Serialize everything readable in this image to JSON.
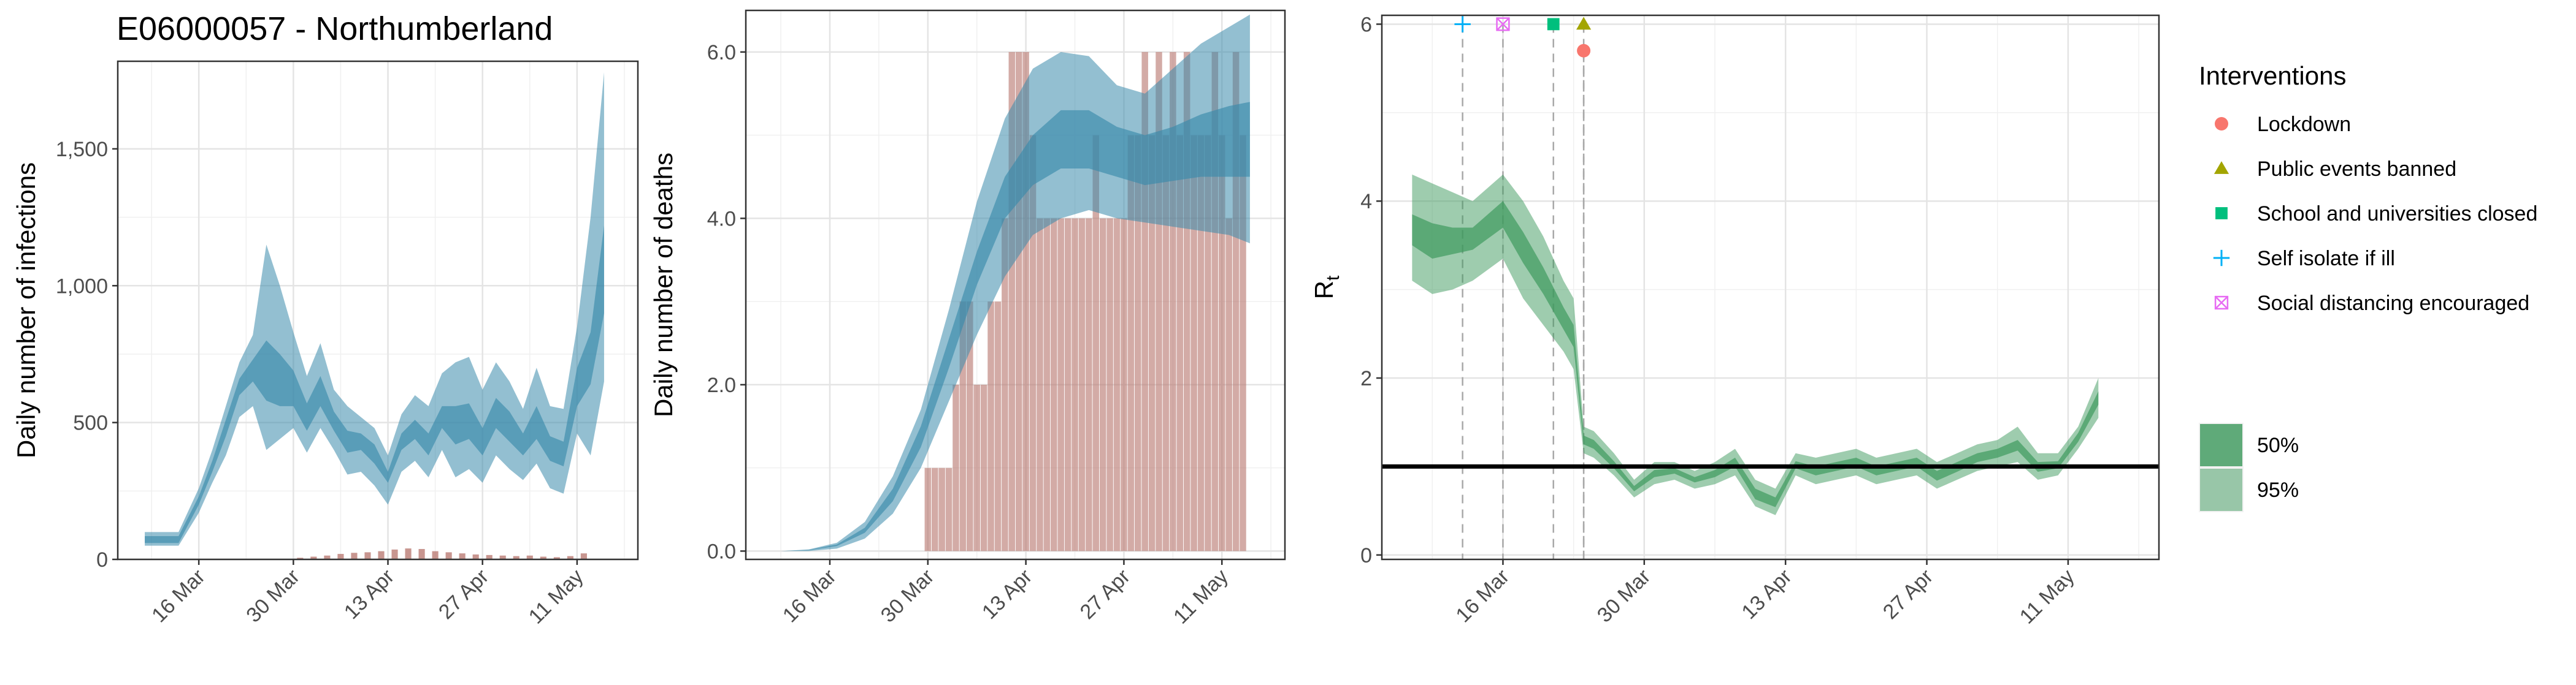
{
  "title": "E06000057 - Northumberland",
  "colors": {
    "infections_band": "#3a8bab",
    "deaths_band": "#3a8bab",
    "observed_bar": "#b5736b",
    "rt_band": "#3e9a5e",
    "lockdown": "#f8766d",
    "public_events_banned": "#a3a500",
    "schools_closed": "#00bf7d",
    "self_isolate": "#00b0f6",
    "social_distancing": "#e76bf3"
  },
  "chart_data": [
    {
      "id": "infections",
      "type": "area",
      "title": "E06000057 - Northumberland",
      "ylabel": "Daily number of infections",
      "xlabel": "",
      "xlim": [
        "2020-03-04",
        "2020-05-20"
      ],
      "ylim": [
        0,
        1820
      ],
      "yticks": [
        0,
        500,
        1000,
        1500
      ],
      "ytick_labels": [
        "0",
        "500",
        "1,000",
        "1,500"
      ],
      "xticks": [
        "2020-03-16",
        "2020-03-30",
        "2020-04-13",
        "2020-04-27",
        "2020-05-11"
      ],
      "xtick_labels": [
        "16 Mar",
        "30 Mar",
        "13 Apr",
        "27 Apr",
        "11 May"
      ],
      "grid": true,
      "series": [
        {
          "kind": "band",
          "level": "95%",
          "x": [
            "2020-03-08",
            "2020-03-13",
            "2020-03-16",
            "2020-03-18",
            "2020-03-20",
            "2020-03-22",
            "2020-03-24",
            "2020-03-26",
            "2020-03-28",
            "2020-03-30",
            "2020-04-01",
            "2020-04-03",
            "2020-04-05",
            "2020-04-07",
            "2020-04-09",
            "2020-04-11",
            "2020-04-13",
            "2020-04-15",
            "2020-04-17",
            "2020-04-19",
            "2020-04-21",
            "2020-04-23",
            "2020-04-25",
            "2020-04-27",
            "2020-04-29",
            "2020-05-01",
            "2020-05-03",
            "2020-05-05",
            "2020-05-07",
            "2020-05-09",
            "2020-05-11",
            "2020-05-13",
            "2020-05-15"
          ],
          "low": [
            50,
            50,
            170,
            280,
            380,
            520,
            560,
            400,
            440,
            480,
            390,
            480,
            400,
            310,
            320,
            270,
            200,
            320,
            360,
            300,
            400,
            300,
            330,
            280,
            380,
            330,
            290,
            350,
            260,
            240,
            460,
            380,
            650
          ],
          "high": [
            100,
            100,
            260,
            400,
            560,
            720,
            820,
            1150,
            1000,
            830,
            670,
            790,
            620,
            560,
            520,
            480,
            380,
            530,
            600,
            560,
            680,
            720,
            740,
            620,
            720,
            650,
            550,
            700,
            560,
            550,
            850,
            1250,
            1780
          ]
        },
        {
          "kind": "band",
          "level": "50%",
          "x": [
            "2020-03-08",
            "2020-03-13",
            "2020-03-16",
            "2020-03-18",
            "2020-03-20",
            "2020-03-22",
            "2020-03-24",
            "2020-03-26",
            "2020-03-28",
            "2020-03-30",
            "2020-04-01",
            "2020-04-03",
            "2020-04-05",
            "2020-04-07",
            "2020-04-09",
            "2020-04-11",
            "2020-04-13",
            "2020-04-15",
            "2020-04-17",
            "2020-04-19",
            "2020-04-21",
            "2020-04-23",
            "2020-04-25",
            "2020-04-27",
            "2020-04-29",
            "2020-05-01",
            "2020-05-03",
            "2020-05-05",
            "2020-05-07",
            "2020-05-09",
            "2020-05-11",
            "2020-05-13",
            "2020-05-15"
          ],
          "low": [
            60,
            60,
            200,
            320,
            450,
            600,
            650,
            580,
            560,
            560,
            470,
            560,
            470,
            390,
            400,
            350,
            280,
            400,
            440,
            380,
            480,
            420,
            440,
            380,
            480,
            430,
            380,
            440,
            360,
            340,
            560,
            640,
            900
          ],
          "high": [
            85,
            85,
            230,
            360,
            510,
            660,
            730,
            800,
            750,
            690,
            570,
            670,
            540,
            470,
            460,
            420,
            320,
            460,
            510,
            460,
            560,
            560,
            570,
            480,
            590,
            540,
            460,
            560,
            450,
            430,
            700,
            830,
            1220
          ]
        },
        {
          "kind": "bar",
          "name": "observed",
          "x": [
            "2020-03-31",
            "2020-04-02",
            "2020-04-04",
            "2020-04-06",
            "2020-04-08",
            "2020-04-10",
            "2020-04-12",
            "2020-04-14",
            "2020-04-16",
            "2020-04-18",
            "2020-04-20",
            "2020-04-22",
            "2020-04-24",
            "2020-04-26",
            "2020-04-28",
            "2020-04-30",
            "2020-05-02",
            "2020-05-04",
            "2020-05-06",
            "2020-05-08",
            "2020-05-10",
            "2020-05-12"
          ],
          "values": [
            6,
            10,
            14,
            20,
            24,
            26,
            30,
            36,
            40,
            38,
            30,
            26,
            22,
            18,
            16,
            14,
            12,
            14,
            10,
            8,
            12,
            22
          ]
        }
      ]
    },
    {
      "id": "deaths",
      "type": "area",
      "title": "",
      "ylabel": "Daily number of deaths",
      "xlabel": "",
      "xlim": [
        "2020-03-04",
        "2020-05-20"
      ],
      "ylim": [
        -0.1,
        6.5
      ],
      "yticks": [
        0.0,
        2.0,
        4.0,
        6.0
      ],
      "ytick_labels": [
        "0.0",
        "2.0",
        "4.0",
        "6.0"
      ],
      "xticks": [
        "2020-03-16",
        "2020-03-30",
        "2020-04-13",
        "2020-04-27",
        "2020-05-11"
      ],
      "xtick_labels": [
        "16 Mar",
        "30 Mar",
        "13 Apr",
        "27 Apr",
        "11 May"
      ],
      "grid": true,
      "series": [
        {
          "kind": "bar",
          "name": "observed",
          "x": [
            "2020-03-30",
            "2020-03-31",
            "2020-04-01",
            "2020-04-02",
            "2020-04-03",
            "2020-04-04",
            "2020-04-05",
            "2020-04-06",
            "2020-04-07",
            "2020-04-08",
            "2020-04-09",
            "2020-04-10",
            "2020-04-11",
            "2020-04-12",
            "2020-04-13",
            "2020-04-14",
            "2020-04-15",
            "2020-04-16",
            "2020-04-17",
            "2020-04-18",
            "2020-04-19",
            "2020-04-20",
            "2020-04-21",
            "2020-04-22",
            "2020-04-23",
            "2020-04-24",
            "2020-04-25",
            "2020-04-26",
            "2020-04-27",
            "2020-04-28",
            "2020-04-29",
            "2020-04-30",
            "2020-05-01",
            "2020-05-02",
            "2020-05-03",
            "2020-05-04",
            "2020-05-05",
            "2020-05-06",
            "2020-05-07",
            "2020-05-08",
            "2020-05-09",
            "2020-05-10",
            "2020-05-11",
            "2020-05-12",
            "2020-05-13",
            "2020-05-14"
          ],
          "values": [
            1,
            1,
            1,
            1,
            2,
            3,
            3,
            2,
            2,
            3,
            3,
            4,
            6,
            6,
            6,
            5,
            4,
            4,
            4,
            4,
            4,
            4,
            4,
            4,
            5,
            4,
            4,
            4,
            4,
            5,
            5,
            6,
            5,
            6,
            5,
            6,
            5,
            6,
            5,
            5,
            5,
            6,
            5,
            4,
            6,
            5
          ]
        },
        {
          "kind": "band",
          "level": "95%",
          "x": [
            "2020-03-09",
            "2020-03-13",
            "2020-03-17",
            "2020-03-21",
            "2020-03-25",
            "2020-03-29",
            "2020-04-02",
            "2020-04-06",
            "2020-04-10",
            "2020-04-14",
            "2020-04-18",
            "2020-04-22",
            "2020-04-26",
            "2020-04-30",
            "2020-05-04",
            "2020-05-08",
            "2020-05-12",
            "2020-05-15"
          ],
          "low": [
            0.0,
            0.0,
            0.03,
            0.15,
            0.45,
            1.0,
            1.8,
            2.6,
            3.3,
            3.8,
            4.0,
            4.1,
            4.0,
            3.95,
            3.9,
            3.85,
            3.8,
            3.7
          ],
          "high": [
            0.0,
            0.02,
            0.1,
            0.35,
            0.9,
            1.7,
            2.9,
            4.2,
            5.2,
            5.8,
            6.0,
            5.95,
            5.6,
            5.5,
            5.8,
            6.1,
            6.3,
            6.45
          ]
        },
        {
          "kind": "band",
          "level": "50%",
          "x": [
            "2020-03-09",
            "2020-03-13",
            "2020-03-17",
            "2020-03-21",
            "2020-03-25",
            "2020-03-29",
            "2020-04-02",
            "2020-04-06",
            "2020-04-10",
            "2020-04-14",
            "2020-04-18",
            "2020-04-22",
            "2020-04-26",
            "2020-04-30",
            "2020-05-04",
            "2020-05-08",
            "2020-05-12",
            "2020-05-15"
          ],
          "low": [
            0.0,
            0.01,
            0.06,
            0.22,
            0.6,
            1.25,
            2.2,
            3.2,
            4.0,
            4.4,
            4.6,
            4.6,
            4.5,
            4.4,
            4.45,
            4.5,
            4.5,
            4.5
          ],
          "high": [
            0.0,
            0.015,
            0.08,
            0.28,
            0.75,
            1.5,
            2.55,
            3.6,
            4.5,
            5.0,
            5.3,
            5.3,
            5.1,
            5.0,
            5.1,
            5.25,
            5.35,
            5.4
          ]
        }
      ]
    },
    {
      "id": "rt",
      "type": "area",
      "title": "",
      "ylabel": "R",
      "ylabel_subscript": "t",
      "xlabel": "",
      "xlim": [
        "2020-03-04",
        "2020-05-20"
      ],
      "ylim": [
        -0.05,
        6.1
      ],
      "yticks": [
        0,
        2,
        4,
        6
      ],
      "ytick_labels": [
        "0",
        "2",
        "4",
        "6"
      ],
      "xticks": [
        "2020-03-16",
        "2020-03-30",
        "2020-04-13",
        "2020-04-27",
        "2020-05-11"
      ],
      "xtick_labels": [
        "16 Mar",
        "30 Mar",
        "13 Apr",
        "27 Apr",
        "11 May"
      ],
      "grid": true,
      "reference_line": 1,
      "series": [
        {
          "kind": "band",
          "level": "95%",
          "x": [
            "2020-03-07",
            "2020-03-09",
            "2020-03-11",
            "2020-03-13",
            "2020-03-16",
            "2020-03-18",
            "2020-03-20",
            "2020-03-22",
            "2020-03-23",
            "2020-03-24",
            "2020-03-25",
            "2020-03-27",
            "2020-03-29",
            "2020-03-31",
            "2020-04-02",
            "2020-04-04",
            "2020-04-06",
            "2020-04-08",
            "2020-04-10",
            "2020-04-12",
            "2020-04-14",
            "2020-04-16",
            "2020-04-18",
            "2020-04-20",
            "2020-04-22",
            "2020-04-24",
            "2020-04-26",
            "2020-04-28",
            "2020-04-30",
            "2020-05-02",
            "2020-05-04",
            "2020-05-06",
            "2020-05-08",
            "2020-05-10",
            "2020-05-12",
            "2020-05-14"
          ],
          "low": [
            3.1,
            2.95,
            3.0,
            3.1,
            3.35,
            2.9,
            2.6,
            2.3,
            2.1,
            1.15,
            1.1,
            0.9,
            0.65,
            0.8,
            0.85,
            0.75,
            0.8,
            0.9,
            0.55,
            0.45,
            0.9,
            0.8,
            0.85,
            0.9,
            0.8,
            0.85,
            0.9,
            0.75,
            0.85,
            0.95,
            1.0,
            1.05,
            0.85,
            0.9,
            1.2,
            1.55
          ],
          "high": [
            4.3,
            4.2,
            4.1,
            4.0,
            4.3,
            4.0,
            3.6,
            3.1,
            2.9,
            1.45,
            1.4,
            1.15,
            0.85,
            1.05,
            1.05,
            0.95,
            1.05,
            1.2,
            0.85,
            0.75,
            1.15,
            1.1,
            1.15,
            1.2,
            1.1,
            1.15,
            1.2,
            1.05,
            1.15,
            1.25,
            1.3,
            1.45,
            1.15,
            1.15,
            1.45,
            2.0
          ]
        },
        {
          "kind": "band",
          "level": "50%",
          "x": [
            "2020-03-07",
            "2020-03-09",
            "2020-03-11",
            "2020-03-13",
            "2020-03-16",
            "2020-03-18",
            "2020-03-20",
            "2020-03-22",
            "2020-03-23",
            "2020-03-24",
            "2020-03-25",
            "2020-03-27",
            "2020-03-29",
            "2020-03-31",
            "2020-04-02",
            "2020-04-04",
            "2020-04-06",
            "2020-04-08",
            "2020-04-10",
            "2020-04-12",
            "2020-04-14",
            "2020-04-16",
            "2020-04-18",
            "2020-04-20",
            "2020-04-22",
            "2020-04-24",
            "2020-04-26",
            "2020-04-28",
            "2020-04-30",
            "2020-05-02",
            "2020-05-04",
            "2020-05-06",
            "2020-05-08",
            "2020-05-10",
            "2020-05-12",
            "2020-05-14"
          ],
          "low": [
            3.5,
            3.35,
            3.4,
            3.45,
            3.7,
            3.3,
            2.95,
            2.55,
            2.35,
            1.25,
            1.2,
            0.98,
            0.72,
            0.88,
            0.92,
            0.82,
            0.88,
            1.0,
            0.63,
            0.54,
            0.98,
            0.9,
            0.95,
            1.0,
            0.9,
            0.95,
            1.0,
            0.84,
            0.94,
            1.05,
            1.1,
            1.18,
            0.94,
            0.98,
            1.28,
            1.7
          ],
          "high": [
            3.85,
            3.75,
            3.7,
            3.7,
            4.0,
            3.65,
            3.25,
            2.8,
            2.6,
            1.35,
            1.3,
            1.06,
            0.78,
            0.96,
            0.98,
            0.88,
            0.96,
            1.1,
            0.75,
            0.65,
            1.06,
            1.0,
            1.05,
            1.1,
            1.0,
            1.05,
            1.1,
            0.95,
            1.05,
            1.15,
            1.2,
            1.3,
            1.05,
            1.06,
            1.38,
            1.85
          ]
        }
      ],
      "interventions": [
        {
          "name": "Self isolate if ill",
          "date": "2020-03-12",
          "marker": "plus",
          "color": "#00b0f6",
          "y": 6.0
        },
        {
          "name": "Social distancing encouraged",
          "date": "2020-03-16",
          "marker": "boxx",
          "color": "#e76bf3",
          "y": 6.0
        },
        {
          "name": "School and universities closed",
          "date": "2020-03-21",
          "marker": "square",
          "color": "#00bf7d",
          "y": 6.0
        },
        {
          "name": "Public events banned",
          "date": "2020-03-24",
          "marker": "triangle",
          "color": "#a3a500",
          "y": 6.0
        },
        {
          "name": "Lockdown",
          "date": "2020-03-24",
          "marker": "circle",
          "color": "#f8766d",
          "y": 5.7
        }
      ]
    }
  ],
  "legend": {
    "interventions_title": "Interventions",
    "interventions": [
      {
        "label": "Lockdown",
        "marker": "circle",
        "color": "#f8766d"
      },
      {
        "label": "Public events banned",
        "marker": "triangle",
        "color": "#a3a500"
      },
      {
        "label": "School and universities closed",
        "marker": "square",
        "color": "#00bf7d"
      },
      {
        "label": "Self isolate if ill",
        "marker": "plus",
        "color": "#00b0f6"
      },
      {
        "label": "Social distancing encouraged",
        "marker": "boxx",
        "color": "#e76bf3"
      }
    ],
    "bands": [
      {
        "label": "50%",
        "level": "50%"
      },
      {
        "label": "95%",
        "level": "95%"
      }
    ]
  }
}
